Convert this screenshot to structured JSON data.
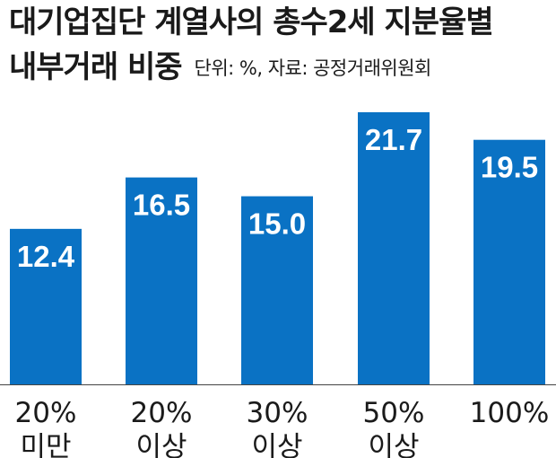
{
  "title": {
    "line1": "대기업집단 계열사의 총수2세 지분율별",
    "line2": "내부거래 비중",
    "subtitle": "단위: %, 자료: 공정거래위원회"
  },
  "colors": {
    "bar": "#0a72c4",
    "axis": "#444444",
    "label_inside": "#ffffff",
    "tick_text": "#1a1a1a"
  },
  "chart_data": {
    "type": "bar",
    "categories": [
      [
        "20%",
        "미만"
      ],
      [
        "20%",
        "이상"
      ],
      [
        "30%",
        "이상"
      ],
      [
        "50%",
        "이상"
      ],
      [
        "100%"
      ]
    ],
    "values": [
      12.4,
      16.5,
      15.0,
      21.7,
      19.5
    ],
    "value_labels": [
      "12.4",
      "16.5",
      "15.0",
      "21.7",
      "19.5"
    ],
    "ylim": [
      0,
      22.2
    ],
    "grid": false,
    "legend": "none"
  }
}
